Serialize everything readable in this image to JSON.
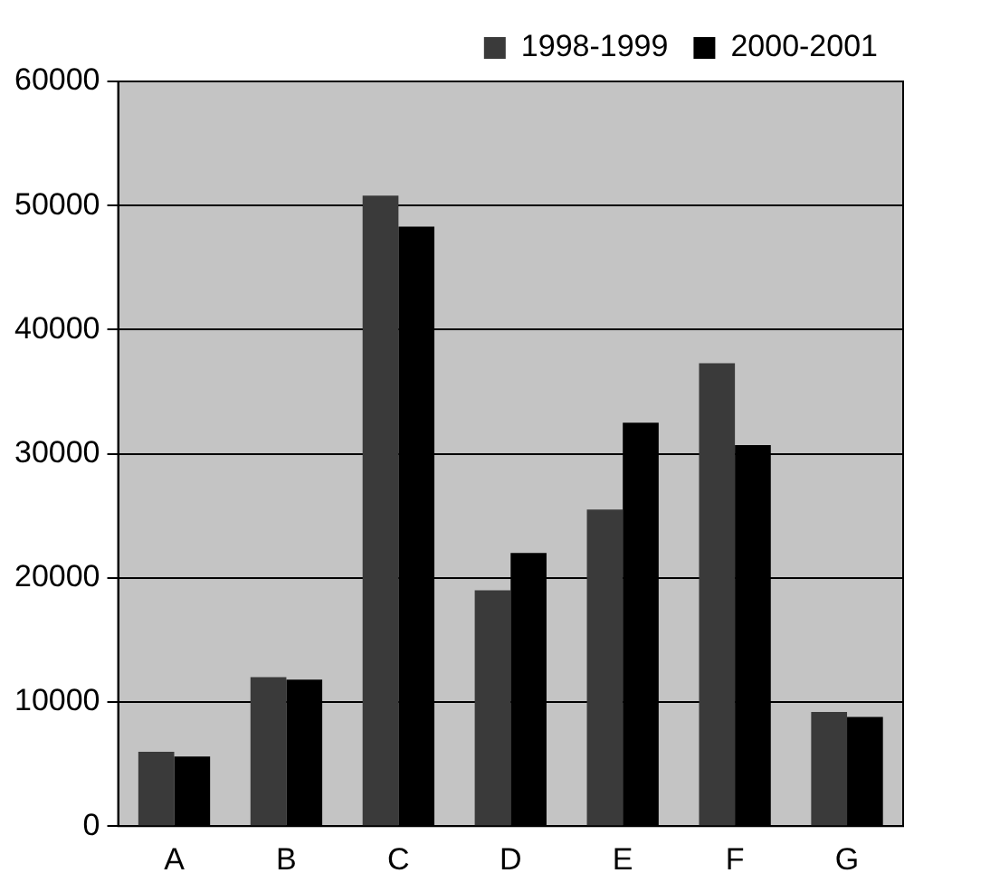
{
  "chart_data": {
    "type": "bar",
    "categories": [
      "A",
      "B",
      "C",
      "D",
      "E",
      "F",
      "G"
    ],
    "series": [
      {
        "name": "1998-1999",
        "color": "#3a3a3a",
        "values": [
          6000,
          12000,
          50800,
          19000,
          25500,
          37300,
          9200
        ]
      },
      {
        "name": "2000-2001",
        "color": "#000000",
        "values": [
          5600,
          11800,
          48300,
          22000,
          32500,
          30700,
          8800
        ]
      }
    ],
    "ylim": [
      0,
      60000
    ],
    "yticks": [
      0,
      10000,
      20000,
      30000,
      40000,
      50000,
      60000
    ],
    "grid": "y",
    "legend": "top right"
  }
}
